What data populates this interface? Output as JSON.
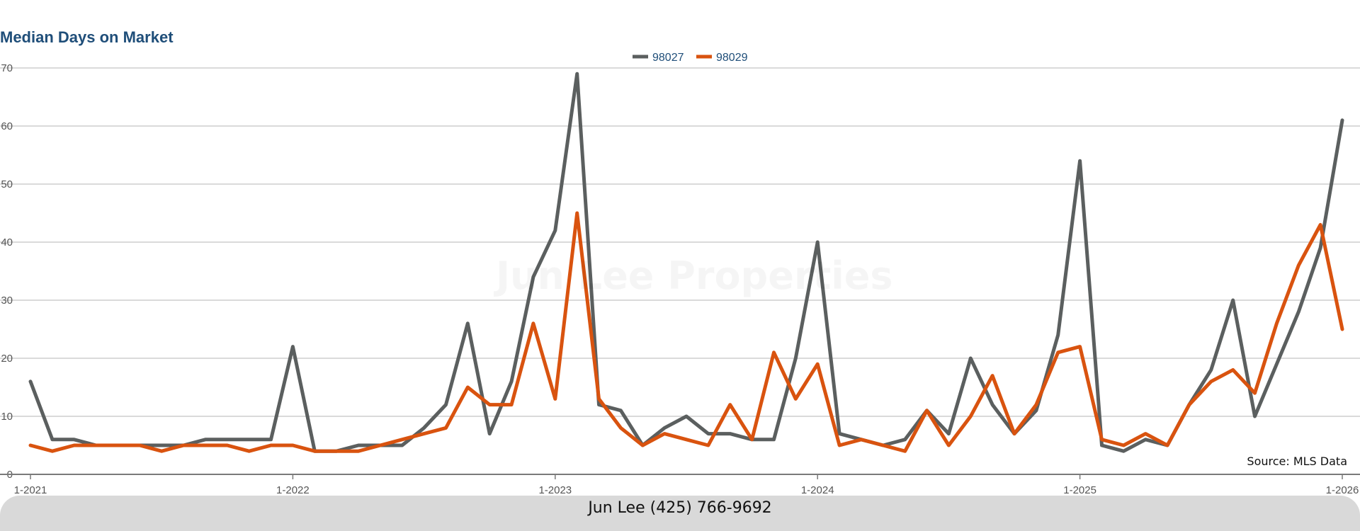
{
  "footer": {
    "contact": "Jun Lee (425) 766-9692"
  },
  "watermark": "Jun Lee Properties",
  "source": "Source: MLS Data",
  "chart_data": {
    "type": "line",
    "title": "Median Days on Market",
    "xlabel": "",
    "ylabel": "",
    "ylim": [
      0,
      70
    ],
    "yticks": [
      0,
      10,
      20,
      30,
      40,
      50,
      60,
      70
    ],
    "ytick_labels": [
      "0",
      "10",
      "20",
      "30",
      "40",
      "50",
      "60",
      "70"
    ],
    "xticks": [
      {
        "label": "1-2021",
        "index": 0
      },
      {
        "label": "1-2022",
        "index": 12
      },
      {
        "label": "1-2023",
        "index": 24
      },
      {
        "label": "1-2024",
        "index": 36
      },
      {
        "label": "1-2025",
        "index": 48
      },
      {
        "label": "1-2026",
        "index": 60
      }
    ],
    "grid": true,
    "legend_position": "top-center",
    "x": [
      "1-2021",
      "2-2021",
      "3-2021",
      "4-2021",
      "5-2021",
      "6-2021",
      "7-2021",
      "8-2021",
      "9-2021",
      "10-2021",
      "11-2021",
      "12-2021",
      "1-2022",
      "2-2022",
      "3-2022",
      "4-2022",
      "5-2022",
      "6-2022",
      "7-2022",
      "8-2022",
      "9-2022",
      "10-2022",
      "11-2022",
      "12-2022",
      "1-2023",
      "2-2023",
      "3-2023",
      "4-2023",
      "5-2023",
      "6-2023",
      "7-2023",
      "8-2023",
      "9-2023",
      "10-2023",
      "11-2023",
      "12-2023",
      "1-2024",
      "2-2024",
      "3-2024",
      "4-2024",
      "5-2024",
      "6-2024",
      "7-2024",
      "8-2024",
      "9-2024",
      "10-2024",
      "11-2024",
      "12-2024",
      "1-2025",
      "2-2025",
      "3-2025",
      "4-2025",
      "5-2025",
      "6-2025",
      "7-2025",
      "8-2025",
      "9-2025",
      "10-2025",
      "11-2025",
      "12-2025",
      "1-2026"
    ],
    "series": [
      {
        "name": "98027",
        "color": "#5b5f5f",
        "values": [
          16,
          6,
          6,
          5,
          5,
          5,
          5,
          5,
          6,
          6,
          6,
          6,
          22,
          4,
          4,
          5,
          5,
          5,
          8,
          12,
          26,
          7,
          16,
          34,
          42,
          69,
          12,
          11,
          5,
          8,
          10,
          7,
          7,
          6,
          6,
          20,
          40,
          7,
          6,
          5,
          6,
          11,
          7,
          20,
          12,
          7,
          11,
          24,
          54,
          5,
          4,
          6,
          5,
          12,
          18,
          30,
          10,
          19,
          28,
          39,
          61
        ]
      },
      {
        "name": "98029",
        "color": "#d9530f",
        "values": [
          5,
          4,
          5,
          5,
          5,
          5,
          4,
          5,
          5,
          5,
          4,
          5,
          5,
          4,
          4,
          4,
          5,
          6,
          7,
          8,
          15,
          12,
          12,
          26,
          13,
          45,
          13,
          8,
          5,
          7,
          6,
          5,
          12,
          6,
          21,
          13,
          19,
          5,
          6,
          5,
          4,
          11,
          5,
          10,
          17,
          7,
          12,
          21,
          22,
          6,
          5,
          7,
          5,
          12,
          16,
          18,
          14,
          26,
          36,
          43,
          25
        ]
      }
    ]
  }
}
